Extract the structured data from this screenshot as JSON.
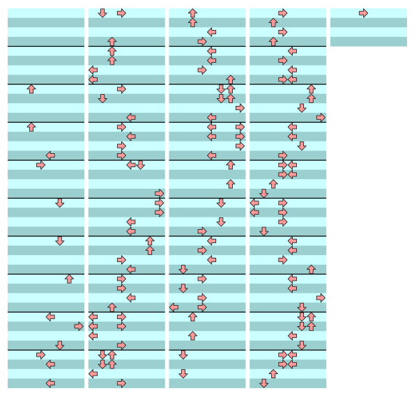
{
  "panels": [
    {
      "rows": 40,
      "notes": [
        [
          8,
          2
        ],
        [
          12,
          2
        ],
        [
          15,
          4
        ],
        [
          16,
          3
        ],
        [
          20,
          5
        ],
        [
          24,
          5
        ],
        [
          28,
          6
        ],
        [
          32,
          4
        ],
        [
          33,
          7
        ],
        [
          35,
          5
        ],
        [
          36,
          3
        ],
        [
          37,
          4
        ],
        [
          39,
          4
        ]
      ]
    },
    {
      "rows": 40,
      "notes": [
        [
          0,
          1
        ],
        [
          0,
          3
        ],
        [
          3,
          2
        ],
        [
          4,
          2
        ],
        [
          5,
          2
        ],
        [
          6,
          0
        ],
        [
          7,
          0
        ],
        [
          8,
          3
        ],
        [
          9,
          1
        ],
        [
          11,
          4
        ],
        [
          12,
          3
        ],
        [
          13,
          4
        ],
        [
          14,
          3
        ],
        [
          15,
          3
        ],
        [
          16,
          4
        ],
        [
          16,
          5
        ],
        [
          19,
          7
        ],
        [
          20,
          7
        ],
        [
          21,
          7
        ],
        [
          22,
          4
        ],
        [
          23,
          4
        ],
        [
          24,
          6
        ],
        [
          25,
          6
        ],
        [
          26,
          3
        ],
        [
          27,
          4
        ],
        [
          28,
          3
        ],
        [
          29,
          3
        ],
        [
          30,
          4
        ],
        [
          31,
          2
        ],
        [
          32,
          0
        ],
        [
          32,
          3
        ],
        [
          33,
          0
        ],
        [
          33,
          3
        ],
        [
          34,
          0
        ],
        [
          35,
          3
        ],
        [
          36,
          1
        ],
        [
          36,
          2
        ],
        [
          37,
          1
        ],
        [
          37,
          2
        ],
        [
          38,
          0
        ],
        [
          39,
          3
        ]
      ]
    },
    {
      "rows": 40,
      "notes": [
        [
          0,
          2
        ],
        [
          1,
          2
        ],
        [
          2,
          4
        ],
        [
          3,
          3
        ],
        [
          4,
          4
        ],
        [
          5,
          4
        ],
        [
          6,
          3
        ],
        [
          7,
          6
        ],
        [
          8,
          5
        ],
        [
          8,
          6
        ],
        [
          9,
          5
        ],
        [
          9,
          6
        ],
        [
          10,
          7
        ],
        [
          11,
          4
        ],
        [
          12,
          4
        ],
        [
          12,
          7
        ],
        [
          13,
          4
        ],
        [
          13,
          7
        ],
        [
          14,
          7
        ],
        [
          15,
          4
        ],
        [
          16,
          6
        ],
        [
          18,
          6
        ],
        [
          20,
          5
        ],
        [
          22,
          5
        ],
        [
          23,
          3
        ],
        [
          24,
          4
        ],
        [
          25,
          3
        ],
        [
          26,
          4
        ],
        [
          27,
          1
        ],
        [
          28,
          3
        ],
        [
          29,
          1
        ],
        [
          30,
          3
        ],
        [
          31,
          0
        ],
        [
          31,
          3
        ],
        [
          32,
          2
        ],
        [
          34,
          2
        ],
        [
          36,
          1
        ],
        [
          38,
          1
        ]
      ]
    },
    {
      "rows": 40,
      "notes": [
        [
          0,
          3
        ],
        [
          1,
          2
        ],
        [
          2,
          3
        ],
        [
          3,
          2
        ],
        [
          4,
          4
        ],
        [
          5,
          3
        ],
        [
          6,
          4
        ],
        [
          7,
          3
        ],
        [
          7,
          4
        ],
        [
          8,
          6
        ],
        [
          9,
          6
        ],
        [
          10,
          5
        ],
        [
          11,
          7
        ],
        [
          12,
          4
        ],
        [
          13,
          4
        ],
        [
          14,
          5
        ],
        [
          15,
          3
        ],
        [
          16,
          3
        ],
        [
          16,
          4
        ],
        [
          17,
          3
        ],
        [
          17,
          4
        ],
        [
          18,
          2
        ],
        [
          19,
          1
        ],
        [
          20,
          0
        ],
        [
          20,
          3
        ],
        [
          21,
          0
        ],
        [
          21,
          3
        ],
        [
          22,
          3
        ],
        [
          23,
          1
        ],
        [
          24,
          4
        ],
        [
          25,
          4
        ],
        [
          26,
          3
        ],
        [
          27,
          6
        ],
        [
          28,
          4
        ],
        [
          29,
          4
        ],
        [
          30,
          7
        ],
        [
          31,
          5
        ],
        [
          32,
          5
        ],
        [
          32,
          6
        ],
        [
          33,
          5
        ],
        [
          33,
          6
        ],
        [
          34,
          4
        ],
        [
          35,
          5
        ],
        [
          36,
          3
        ],
        [
          36,
          4
        ],
        [
          37,
          3
        ],
        [
          37,
          4
        ],
        [
          38,
          2
        ],
        [
          39,
          1
        ]
      ]
    },
    {
      "rows": 4,
      "notes": [
        [
          0,
          3
        ]
      ]
    }
  ]
}
